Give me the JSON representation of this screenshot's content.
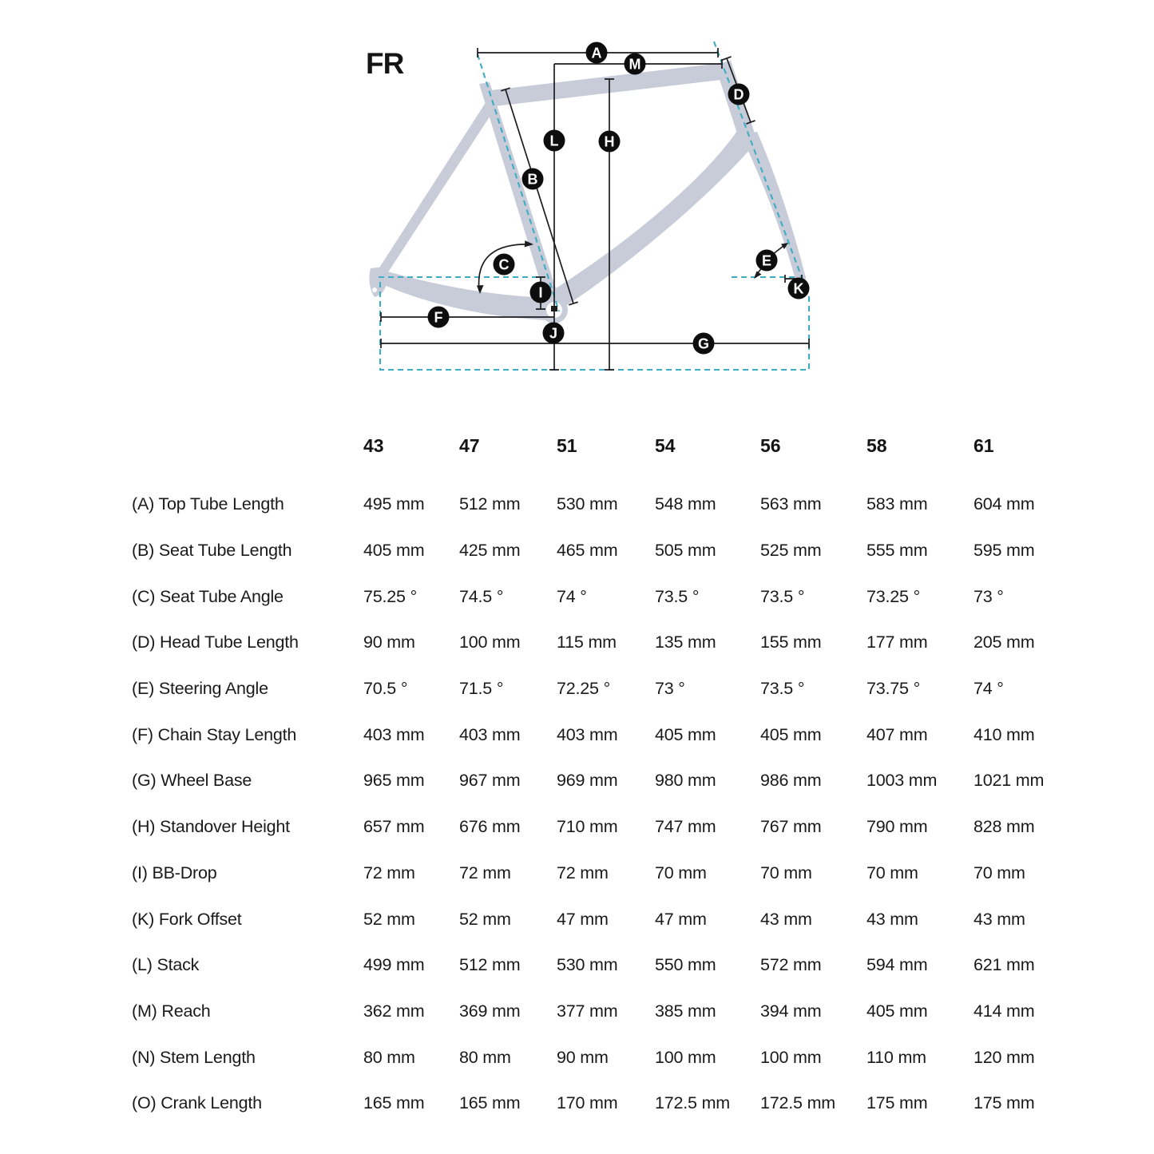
{
  "diagram": {
    "title": "FR",
    "frame_color": "#c7ccd8",
    "dash_color": "#3eadc3",
    "line_color": "#1d1d1f",
    "markers": [
      {
        "label": "A"
      },
      {
        "label": "B"
      },
      {
        "label": "C"
      },
      {
        "label": "D"
      },
      {
        "label": "E"
      },
      {
        "label": "F"
      },
      {
        "label": "G"
      },
      {
        "label": "H"
      },
      {
        "label": "I"
      },
      {
        "label": "J"
      },
      {
        "label": "K"
      },
      {
        "label": "L"
      },
      {
        "label": "M"
      }
    ]
  },
  "table": {
    "sizes": [
      "43",
      "47",
      "51",
      "54",
      "56",
      "58",
      "61"
    ],
    "rows": [
      {
        "label": "(A) Top Tube Length",
        "values": [
          "495 mm",
          "512 mm",
          "530 mm",
          "548 mm",
          "563 mm",
          "583 mm",
          "604 mm"
        ]
      },
      {
        "label": "(B) Seat Tube Length",
        "values": [
          "405 mm",
          "425 mm",
          "465 mm",
          "505 mm",
          "525 mm",
          "555 mm",
          "595 mm"
        ]
      },
      {
        "label": "(C) Seat Tube Angle",
        "values": [
          "75.25 °",
          "74.5 °",
          "74 °",
          "73.5 °",
          "73.5 °",
          "73.25 °",
          "73 °"
        ]
      },
      {
        "label": "(D) Head Tube Length",
        "values": [
          "90 mm",
          "100 mm",
          "115 mm",
          "135 mm",
          "155 mm",
          "177 mm",
          "205 mm"
        ]
      },
      {
        "label": "(E) Steering Angle",
        "values": [
          "70.5 °",
          "71.5 °",
          "72.25 °",
          "73 °",
          "73.5 °",
          "73.75 °",
          "74 °"
        ]
      },
      {
        "label": "(F) Chain Stay Length",
        "values": [
          "403 mm",
          "403 mm",
          "403 mm",
          "405 mm",
          "405 mm",
          "407 mm",
          "410 mm"
        ]
      },
      {
        "label": "(G) Wheel Base",
        "values": [
          "965 mm",
          "967 mm",
          "969 mm",
          "980 mm",
          "986 mm",
          "1003 mm",
          "1021 mm"
        ]
      },
      {
        "label": "(H) Standover Height",
        "values": [
          "657 mm",
          "676 mm",
          "710 mm",
          "747 mm",
          "767 mm",
          "790 mm",
          "828 mm"
        ]
      },
      {
        "label": "(I) BB-Drop",
        "values": [
          "72 mm",
          "72 mm",
          "72 mm",
          "70 mm",
          "70 mm",
          "70 mm",
          "70 mm"
        ]
      },
      {
        "label": "(K) Fork Offset",
        "values": [
          "52 mm",
          "52 mm",
          "47 mm",
          "47 mm",
          "43 mm",
          "43 mm",
          "43 mm"
        ]
      },
      {
        "label": "(L) Stack",
        "values": [
          "499 mm",
          "512 mm",
          "530 mm",
          "550 mm",
          "572 mm",
          "594 mm",
          "621 mm"
        ]
      },
      {
        "label": "(M) Reach",
        "values": [
          "362 mm",
          "369 mm",
          "377 mm",
          "385 mm",
          "394 mm",
          "405 mm",
          "414 mm"
        ]
      },
      {
        "label": "(N) Stem Length",
        "values": [
          "80 mm",
          "80 mm",
          "90 mm",
          "100 mm",
          "100 mm",
          "110 mm",
          "120 mm"
        ]
      },
      {
        "label": "(O) Crank Length",
        "values": [
          "165 mm",
          "165 mm",
          "170 mm",
          "172.5 mm",
          "172.5 mm",
          "175 mm",
          "175 mm"
        ]
      }
    ]
  }
}
